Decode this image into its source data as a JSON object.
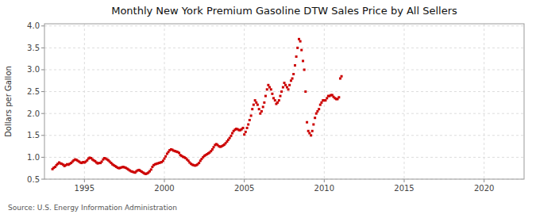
{
  "chart_data": {
    "type": "scatter",
    "title": "Monthly New York Premium Gasoline DTW Sales Price by All Sellers",
    "y_label": "Dollars per Gallon",
    "source": "Source: U.S. Energy Information Administration",
    "xlim": [
      1992.5,
      2022.5
    ],
    "ylim": [
      0.5,
      4.05
    ],
    "xticks": [
      1995,
      2000,
      2005,
      2010,
      2015,
      2020
    ],
    "yticks": [
      0.5,
      {
        "value": 1.0,
        "label": "1.0"
      },
      1.5,
      {
        "value": 2.0,
        "label": "2.0"
      },
      2.5,
      {
        "value": 3.0,
        "label": "3.0"
      },
      3.5,
      {
        "value": 4.0,
        "label": "4.0"
      }
    ],
    "grid": true,
    "color": "#CC0000",
    "marker": "square",
    "x": [
      1993.0,
      1993.08,
      1993.17,
      1993.25,
      1993.33,
      1993.42,
      1993.5,
      1993.58,
      1993.67,
      1993.75,
      1993.83,
      1993.92,
      1994.0,
      1994.08,
      1994.17,
      1994.25,
      1994.33,
      1994.42,
      1994.5,
      1994.58,
      1994.67,
      1994.75,
      1994.83,
      1994.92,
      1995.0,
      1995.08,
      1995.17,
      1995.25,
      1995.33,
      1995.42,
      1995.5,
      1995.58,
      1995.67,
      1995.75,
      1995.83,
      1995.92,
      1996.0,
      1996.08,
      1996.17,
      1996.25,
      1996.33,
      1996.42,
      1996.5,
      1996.58,
      1996.67,
      1996.75,
      1996.83,
      1996.92,
      1997.0,
      1997.08,
      1997.17,
      1997.25,
      1997.33,
      1997.42,
      1997.5,
      1997.58,
      1997.67,
      1997.75,
      1997.83,
      1997.92,
      1998.0,
      1998.08,
      1998.17,
      1998.25,
      1998.33,
      1998.42,
      1998.5,
      1998.58,
      1998.67,
      1998.75,
      1998.83,
      1998.92,
      1999.0,
      1999.08,
      1999.17,
      1999.25,
      1999.33,
      1999.42,
      1999.5,
      1999.58,
      1999.67,
      1999.75,
      1999.83,
      1999.92,
      2000.0,
      2000.08,
      2000.17,
      2000.25,
      2000.33,
      2000.42,
      2000.5,
      2000.58,
      2000.67,
      2000.75,
      2000.83,
      2000.92,
      2001.0,
      2001.08,
      2001.17,
      2001.25,
      2001.33,
      2001.42,
      2001.5,
      2001.58,
      2001.67,
      2001.75,
      2001.83,
      2001.92,
      2002.0,
      2002.08,
      2002.17,
      2002.25,
      2002.33,
      2002.42,
      2002.5,
      2002.58,
      2002.67,
      2002.75,
      2002.83,
      2002.92,
      2003.0,
      2003.08,
      2003.17,
      2003.25,
      2003.33,
      2003.42,
      2003.5,
      2003.58,
      2003.67,
      2003.75,
      2003.83,
      2003.92,
      2004.0,
      2004.08,
      2004.17,
      2004.25,
      2004.33,
      2004.42,
      2004.5,
      2004.58,
      2004.67,
      2004.75,
      2004.83,
      2004.92,
      2005.0,
      2005.08,
      2005.17,
      2005.25,
      2005.33,
      2005.42,
      2005.5,
      2005.58,
      2005.67,
      2005.75,
      2005.83,
      2005.92,
      2006.0,
      2006.08,
      2006.17,
      2006.25,
      2006.33,
      2006.42,
      2006.5,
      2006.58,
      2006.67,
      2006.75,
      2006.83,
      2006.92,
      2007.0,
      2007.08,
      2007.17,
      2007.25,
      2007.33,
      2007.42,
      2007.5,
      2007.58,
      2007.67,
      2007.75,
      2007.83,
      2007.92,
      2008.0,
      2008.08,
      2008.17,
      2008.25,
      2008.33,
      2008.42,
      2008.5,
      2008.58,
      2008.67,
      2008.75,
      2008.83,
      2008.92,
      2009.0,
      2009.08,
      2009.17,
      2009.25,
      2009.33,
      2009.42,
      2009.5,
      2009.58,
      2009.67,
      2009.75,
      2009.83,
      2009.92,
      2010.0,
      2010.08,
      2010.17,
      2010.25,
      2010.33,
      2010.42,
      2010.5,
      2010.58,
      2010.67,
      2010.75,
      2010.83,
      2010.92,
      2011.0,
      2011.08
    ],
    "values": [
      0.73,
      0.76,
      0.78,
      0.82,
      0.85,
      0.88,
      0.86,
      0.85,
      0.83,
      0.8,
      0.82,
      0.84,
      0.83,
      0.85,
      0.87,
      0.9,
      0.93,
      0.95,
      0.94,
      0.92,
      0.9,
      0.88,
      0.87,
      0.89,
      0.88,
      0.9,
      0.93,
      0.97,
      0.99,
      0.98,
      0.95,
      0.93,
      0.91,
      0.88,
      0.86,
      0.87,
      0.87,
      0.9,
      0.95,
      0.98,
      0.97,
      0.95,
      0.93,
      0.9,
      0.87,
      0.84,
      0.82,
      0.8,
      0.78,
      0.76,
      0.75,
      0.76,
      0.77,
      0.78,
      0.77,
      0.76,
      0.74,
      0.72,
      0.7,
      0.68,
      0.67,
      0.66,
      0.65,
      0.68,
      0.7,
      0.71,
      0.69,
      0.67,
      0.65,
      0.63,
      0.62,
      0.63,
      0.65,
      0.68,
      0.72,
      0.78,
      0.82,
      0.84,
      0.85,
      0.86,
      0.87,
      0.88,
      0.89,
      0.92,
      0.97,
      1.02,
      1.08,
      1.12,
      1.16,
      1.18,
      1.17,
      1.15,
      1.14,
      1.13,
      1.12,
      1.1,
      1.05,
      1.03,
      1.01,
      1.0,
      0.98,
      0.95,
      0.92,
      0.88,
      0.85,
      0.83,
      0.82,
      0.81,
      0.82,
      0.84,
      0.87,
      0.92,
      0.96,
      1.0,
      1.03,
      1.05,
      1.07,
      1.09,
      1.11,
      1.14,
      1.18,
      1.23,
      1.28,
      1.3,
      1.28,
      1.25,
      1.24,
      1.25,
      1.27,
      1.29,
      1.32,
      1.36,
      1.4,
      1.44,
      1.49,
      1.55,
      1.6,
      1.63,
      1.65,
      1.64,
      1.62,
      1.62,
      1.64,
      1.67,
      1.52,
      1.58,
      1.67,
      1.75,
      1.85,
      1.95,
      2.1,
      2.2,
      2.3,
      2.25,
      2.2,
      2.1,
      2.0,
      2.05,
      2.15,
      2.25,
      2.4,
      2.55,
      2.65,
      2.6,
      2.55,
      2.45,
      2.35,
      2.3,
      2.22,
      2.25,
      2.3,
      2.4,
      2.5,
      2.6,
      2.7,
      2.65,
      2.6,
      2.55,
      2.65,
      2.75,
      2.8,
      2.9,
      3.1,
      3.3,
      3.5,
      3.7,
      3.65,
      3.45,
      3.2,
      3.0,
      2.5,
      1.8,
      1.6,
      1.55,
      1.5,
      1.6,
      1.75,
      1.9,
      2.0,
      2.05,
      2.1,
      2.2,
      2.25,
      2.3,
      2.3,
      2.3,
      2.35,
      2.4,
      2.4,
      2.42,
      2.42,
      2.38,
      2.35,
      2.33,
      2.33,
      2.37,
      2.8,
      2.85
    ]
  }
}
